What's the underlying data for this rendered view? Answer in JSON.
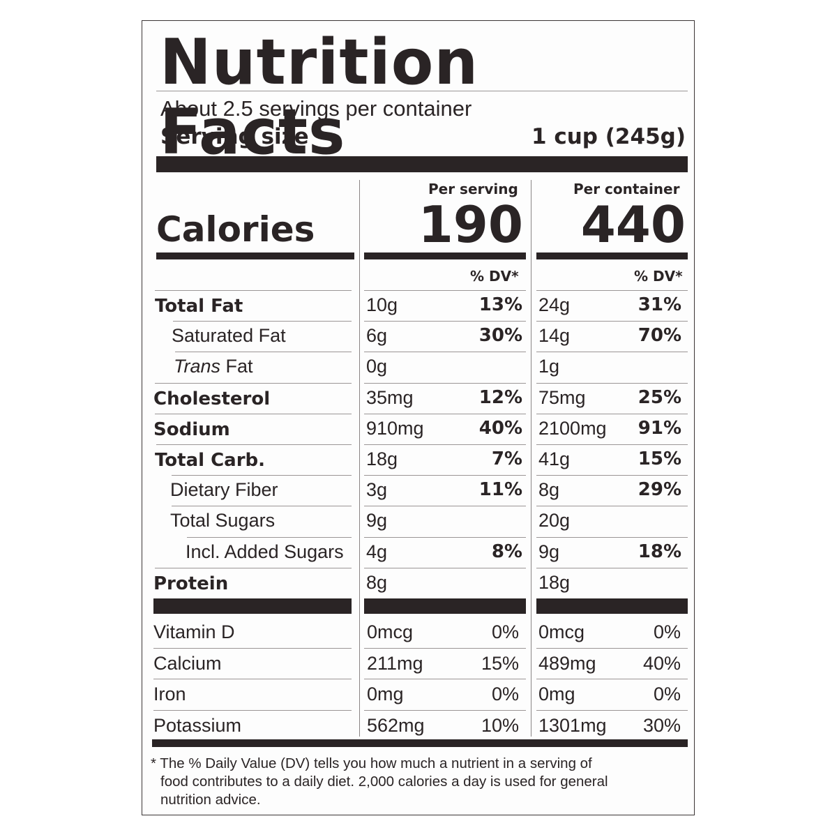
{
  "title": "Nutrition Facts",
  "servings_per_container": "About 2.5 servings per container",
  "serving_size_label": "Serving size",
  "serving_size_value": "1 cup (245g)",
  "col_serving_header": "Per serving",
  "col_container_header": "Per container",
  "calories_label": "Calories",
  "calories_serving": "190",
  "calories_container": "440",
  "dv_header": "% DV*",
  "nutrients": [
    {
      "name": "Total Fat",
      "s_amt": "10g",
      "s_dv": "13%",
      "c_amt": "24g",
      "c_dv": "31%"
    },
    {
      "name": "Saturated Fat",
      "s_amt": "6g",
      "s_dv": "30%",
      "c_amt": "14g",
      "c_dv": "70%"
    },
    {
      "name_italic": "Trans",
      "name": " Fat",
      "s_amt": "0g",
      "s_dv": "",
      "c_amt": "1g",
      "c_dv": ""
    },
    {
      "name": "Cholesterol",
      "s_amt": "35mg",
      "s_dv": "12%",
      "c_amt": "75mg",
      "c_dv": "25%"
    },
    {
      "name": "Sodium",
      "s_amt": "910mg",
      "s_dv": "40%",
      "c_amt": "2100mg",
      "c_dv": "91%"
    },
    {
      "name": "Total Carb.",
      "s_amt": "18g",
      "s_dv": "7%",
      "c_amt": "41g",
      "c_dv": "15%"
    },
    {
      "name": "Dietary Fiber",
      "s_amt": "3g",
      "s_dv": "11%",
      "c_amt": "8g",
      "c_dv": "29%"
    },
    {
      "name": "Total Sugars",
      "s_amt": "9g",
      "s_dv": "",
      "c_amt": "20g",
      "c_dv": ""
    },
    {
      "name": "Incl. Added Sugars",
      "s_amt": "4g",
      "s_dv": "8%",
      "c_amt": "9g",
      "c_dv": "18%"
    },
    {
      "name": "Protein",
      "s_amt": "8g",
      "s_dv": "",
      "c_amt": "18g",
      "c_dv": ""
    }
  ],
  "vitamins": [
    {
      "name": "Vitamin D",
      "s_amt": "0mcg",
      "s_dv": "0%",
      "c_amt": "0mcg",
      "c_dv": "0%"
    },
    {
      "name": "Calcium",
      "s_amt": "211mg",
      "s_dv": "15%",
      "c_amt": "489mg",
      "c_dv": "40%"
    },
    {
      "name": "Iron",
      "s_amt": "0mg",
      "s_dv": "0%",
      "c_amt": "0mg",
      "c_dv": "0%"
    },
    {
      "name": "Potassium",
      "s_amt": "562mg",
      "s_dv": "10%",
      "c_amt": "1301mg",
      "c_dv": "30%"
    }
  ],
  "footnote_line1": "* The % Daily Value (DV) tells you how much a nutrient in a serving of",
  "footnote_line2": "food contributes to a daily diet. 2,000 calories a day is used for general",
  "footnote_line3": "nutrition advice."
}
